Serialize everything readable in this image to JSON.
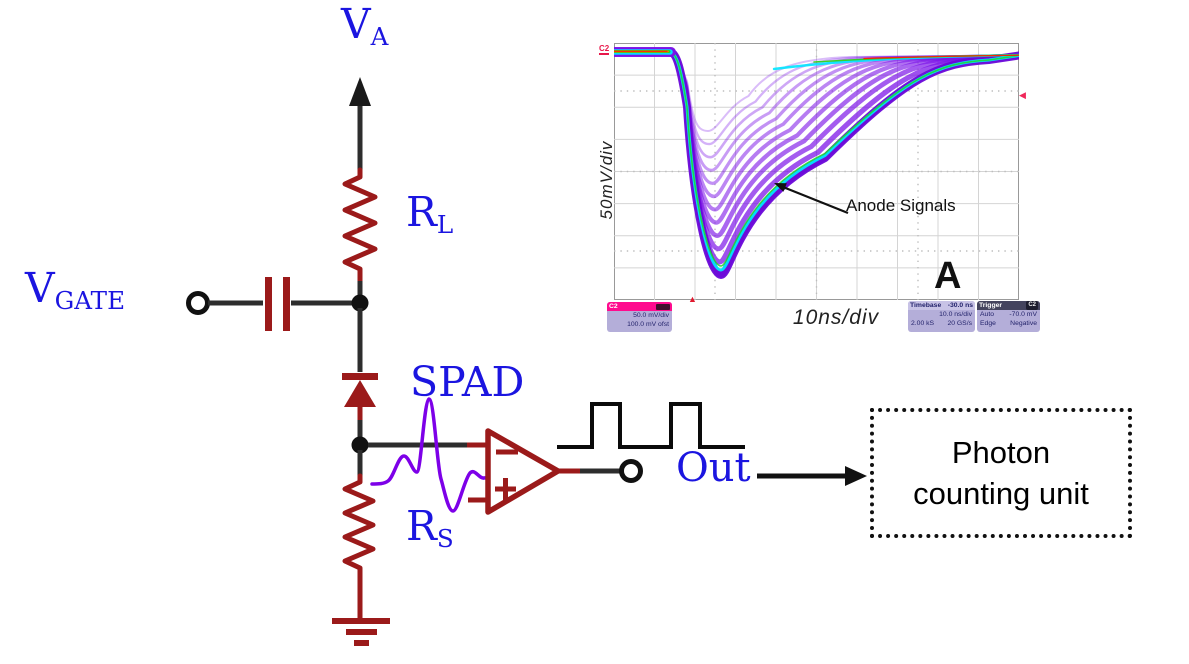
{
  "circuit": {
    "labels": {
      "va": {
        "base": "V",
        "sub": "A"
      },
      "vgate": {
        "base": "V",
        "sub": "GATE"
      },
      "rl": {
        "base": "R",
        "sub": "L"
      },
      "spad": "SPAD",
      "rs": {
        "base": "R",
        "sub": "S"
      },
      "out": "Out"
    },
    "colors": {
      "component_red": "#9b1a1a",
      "wire_dark": "#2d2d2d",
      "label_blue": "#1b15e0",
      "analog_pulse_purple": "#7d00e8"
    }
  },
  "scope": {
    "ylabel": "50mV/div",
    "xlabel": "10ns/div",
    "annotation": "Anode Signals",
    "panel_label": "A",
    "channel_marker": "C2",
    "channel_box": {
      "name": "C2",
      "vdiv": "50.0 mV/div",
      "offset": "100.0 mV ofst"
    },
    "timebase_box": {
      "title": "Timebase",
      "delay": "-30.0 ns",
      "tdiv": "10.0 ns/div",
      "samples": "2.00 kS",
      "rate": "20 GS/s"
    },
    "trigger_box": {
      "title": "Trigger",
      "source": "C2",
      "row1_left": "Auto",
      "row1_right": "-70.0 mV",
      "row2_left": "Edge",
      "row2_right": "Negative"
    }
  },
  "photon_box": {
    "line1": "Photon",
    "line2": "counting unit"
  },
  "chart_data": {
    "type": "line",
    "title": "",
    "xlabel": "10ns/div",
    "ylabel": "50mV/div",
    "x_divisions": 10,
    "y_divisions": 8,
    "volts_per_div_mV": 50,
    "time_per_div_ns": 10,
    "description": "Persistence overlay of many negative-going SPAD anode pulses; amplitudes spread from about -120 mV to -350 mV, all falling at the same instant and recovering with ~20-30 ns tails",
    "series": [
      {
        "name": "deepest anode pulse",
        "x_ns": [
          -30,
          -14,
          -12,
          -10,
          -7,
          -4,
          0,
          5,
          12,
          22,
          40,
          60,
          70
        ],
        "y_mV": [
          0,
          0,
          -20,
          -90,
          -230,
          -340,
          -330,
          -260,
          -170,
          -90,
          -30,
          -10,
          -5
        ]
      },
      {
        "name": "shallowest anode pulse",
        "x_ns": [
          -30,
          -14,
          -12,
          -10,
          -8,
          -5,
          0,
          8,
          20,
          40,
          70
        ],
        "y_mV": [
          0,
          0,
          -20,
          -70,
          -110,
          -120,
          -90,
          -50,
          -20,
          -8,
          -3
        ]
      }
    ],
    "annotations": [
      "Anode Signals"
    ],
    "legend": null,
    "grid": true
  }
}
